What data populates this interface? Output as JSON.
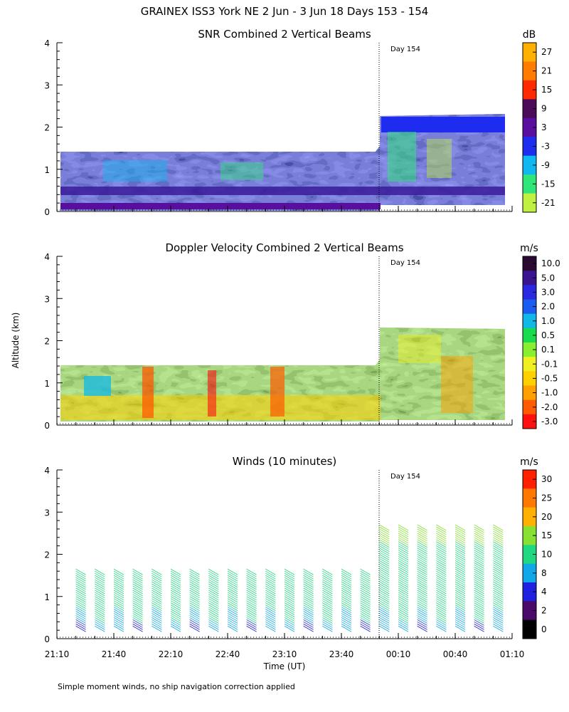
{
  "title": "GRAINEX ISS3 York NE   2 Jun -  3 Jun 18 Days 153 - 154",
  "ylabel": "Altitude (km)",
  "footnote": "Simple moment winds, no ship navigation correction applied",
  "chart_data": [
    {
      "type": "heatmap",
      "title": "SNR Combined 2 Vertical Beams",
      "ylabel": "Altitude (km)",
      "ylim": [
        0,
        4
      ],
      "yticks": [
        "0",
        "1",
        "2",
        "3",
        "4"
      ],
      "day_marker": {
        "label": "Day 154",
        "time": "00:00"
      },
      "colorbar": {
        "unit": "dB",
        "labels": [
          "27",
          "21",
          "15",
          "9",
          "3",
          "-3",
          "-9",
          "-15",
          "-21"
        ],
        "colors": [
          "#ffb000",
          "#ff7c00",
          "#ff2a00",
          "#4b0a5a",
          "#5a0ea0",
          "#1e2cf0",
          "#0fb8f0",
          "#2ee67a",
          "#c0f040"
        ]
      },
      "time_coverage": [
        {
          "from": "21:10",
          "to": "23:55",
          "top_km": 1.42
        },
        {
          "from": "00:00",
          "to": "01:04",
          "top_km": 2.25
        }
      ]
    },
    {
      "type": "heatmap",
      "title": "Doppler Velocity Combined 2 Vertical Beams",
      "ylabel": "Altitude (km)",
      "ylim": [
        0,
        4
      ],
      "yticks": [
        "0",
        "1",
        "2",
        "3",
        "4"
      ],
      "day_marker": {
        "label": "Day 154",
        "time": "00:00"
      },
      "colorbar": {
        "unit": "m/s",
        "labels": [
          "10.0",
          "5.0",
          "3.0",
          "2.0",
          "1.0",
          "0.5",
          "0.1",
          "-0.1",
          "-0.5",
          "-1.0",
          "-2.0",
          "-3.0"
        ],
        "colors": [
          "#2a0a30",
          "#3a1490",
          "#2a28e0",
          "#1a5cf0",
          "#10b8e8",
          "#18dc50",
          "#88ee30",
          "#f0f020",
          "#ffd000",
          "#ffa000",
          "#ff5a00",
          "#ff1010"
        ]
      },
      "time_coverage": [
        {
          "from": "21:10",
          "to": "23:55",
          "top_km": 1.42
        },
        {
          "from": "00:00",
          "to": "01:04",
          "top_km": 2.25
        }
      ]
    },
    {
      "type": "barbs",
      "title": "Winds (10 minutes)",
      "ylabel": "Altitude (km)",
      "xlabel": "Time (UT)",
      "ylim": [
        0,
        4
      ],
      "yticks": [
        "0",
        "1",
        "2",
        "3",
        "4"
      ],
      "xticks": [
        "21:10",
        "21:40",
        "22:10",
        "22:40",
        "23:10",
        "23:40",
        "00:10",
        "00:40",
        "01:10"
      ],
      "day_marker": {
        "label": "Day 154",
        "time": "00:00"
      },
      "colorbar": {
        "unit": "m/s",
        "labels": [
          "30",
          "25",
          "20",
          "15",
          "10",
          "8",
          "4",
          "2",
          "0"
        ],
        "colors": [
          "#ff2000",
          "#ff7800",
          "#ffb000",
          "#88e030",
          "#20d880",
          "#10a8e8",
          "#2020e0",
          "#4a0a6a",
          "#000000"
        ]
      },
      "profile_times_h": [
        21.333,
        21.5,
        21.667,
        21.833,
        22.0,
        22.167,
        22.333,
        22.5,
        22.667,
        22.833,
        23.0,
        23.167,
        23.333,
        23.5,
        23.667,
        23.833,
        24.0,
        24.167,
        24.333,
        24.5,
        24.667,
        24.833,
        25.0
      ]
    }
  ]
}
